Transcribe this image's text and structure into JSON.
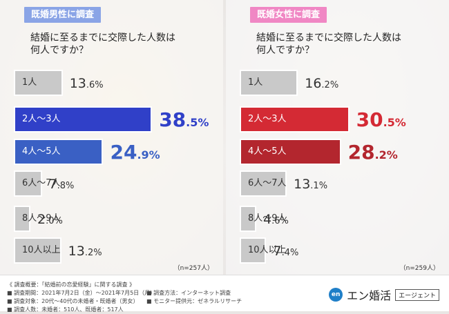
{
  "colors": {
    "male_accent": "#3040c8",
    "male_accent_light": "#3a60c4",
    "female_accent": "#d42a34",
    "female_accent_dark": "#b3262e",
    "male_tag": "#8aa4e6",
    "female_tag": "#f087c4",
    "neutral_bar": "#c9c9c9"
  },
  "panels": [
    {
      "tag": "既婚男性に調査",
      "question_line1": "結婚に至るまでに交際した人数は",
      "question_line2": "何人ですか？",
      "sample": "（n=257人）",
      "rows": [
        {
          "label": "1人",
          "int": "13",
          "dec": ".6%"
        },
        {
          "label": "2人〜3人",
          "int": "38",
          "dec": ".5%"
        },
        {
          "label": "4人〜5人",
          "int": "24",
          "dec": ".9%"
        },
        {
          "label": "6人〜7人",
          "int": "7",
          "dec": ".8%"
        },
        {
          "label": "8人〜9人",
          "int": "2",
          "dec": ".0%"
        },
        {
          "label": "10人以上",
          "int": "13",
          "dec": ".2%"
        }
      ]
    },
    {
      "tag": "既婚女性に調査",
      "question_line1": "結婚に至るまでに交際した人数は",
      "question_line2": "何人ですか？",
      "sample": "（n=259人）",
      "rows": [
        {
          "label": "1人",
          "int": "16",
          "dec": ".2%"
        },
        {
          "label": "2人〜3人",
          "int": "30",
          "dec": ".5%"
        },
        {
          "label": "4人〜5人",
          "int": "28",
          "dec": ".2%"
        },
        {
          "label": "6人〜7人",
          "int": "13",
          "dec": ".1%"
        },
        {
          "label": "8人〜9人",
          "int": "4",
          "dec": ".6%"
        },
        {
          "label": "10人以上",
          "int": "7",
          "dec": ".4%"
        }
      ]
    }
  ],
  "chart_data": [
    {
      "type": "bar",
      "title": "既婚男性に調査",
      "subtitle": "結婚に至るまでに交際した人数は何人ですか？",
      "categories": [
        "1人",
        "2人〜3人",
        "4人〜5人",
        "6人〜7人",
        "8人〜9人",
        "10人以上"
      ],
      "values": [
        13.6,
        38.5,
        24.9,
        7.8,
        2.0,
        13.2
      ],
      "unit": "%",
      "annotation": "（n=257人）"
    },
    {
      "type": "bar",
      "title": "既婚女性に調査",
      "subtitle": "結婚に至るまでに交際した人数は何人ですか？",
      "categories": [
        "1人",
        "2人〜3人",
        "4人〜5人",
        "6人〜7人",
        "8人〜9人",
        "10人以上"
      ],
      "values": [
        16.2,
        30.5,
        28.2,
        13.1,
        4.6,
        7.4
      ],
      "unit": "%",
      "annotation": "（n=259人）"
    }
  ],
  "footer": {
    "col1": [
      "《 調査概要：「結婚前の恋愛経験」に関する調査 》",
      "■ 調査期間：2021年7月2日（金）〜2021年7月5日（月）",
      "■ 調査対象：20代〜40代の未婚者・既婚者（男女）",
      "■ 調査人数：未婚者：510人、既婚者：517人"
    ],
    "col2": [
      "■ 調査方法：インターネット調査",
      "■ モニター提供元：ゼネラルリサーチ"
    ],
    "logo_mark": "en",
    "logo_name": "エン婚活",
    "logo_sub": "エージェント"
  }
}
